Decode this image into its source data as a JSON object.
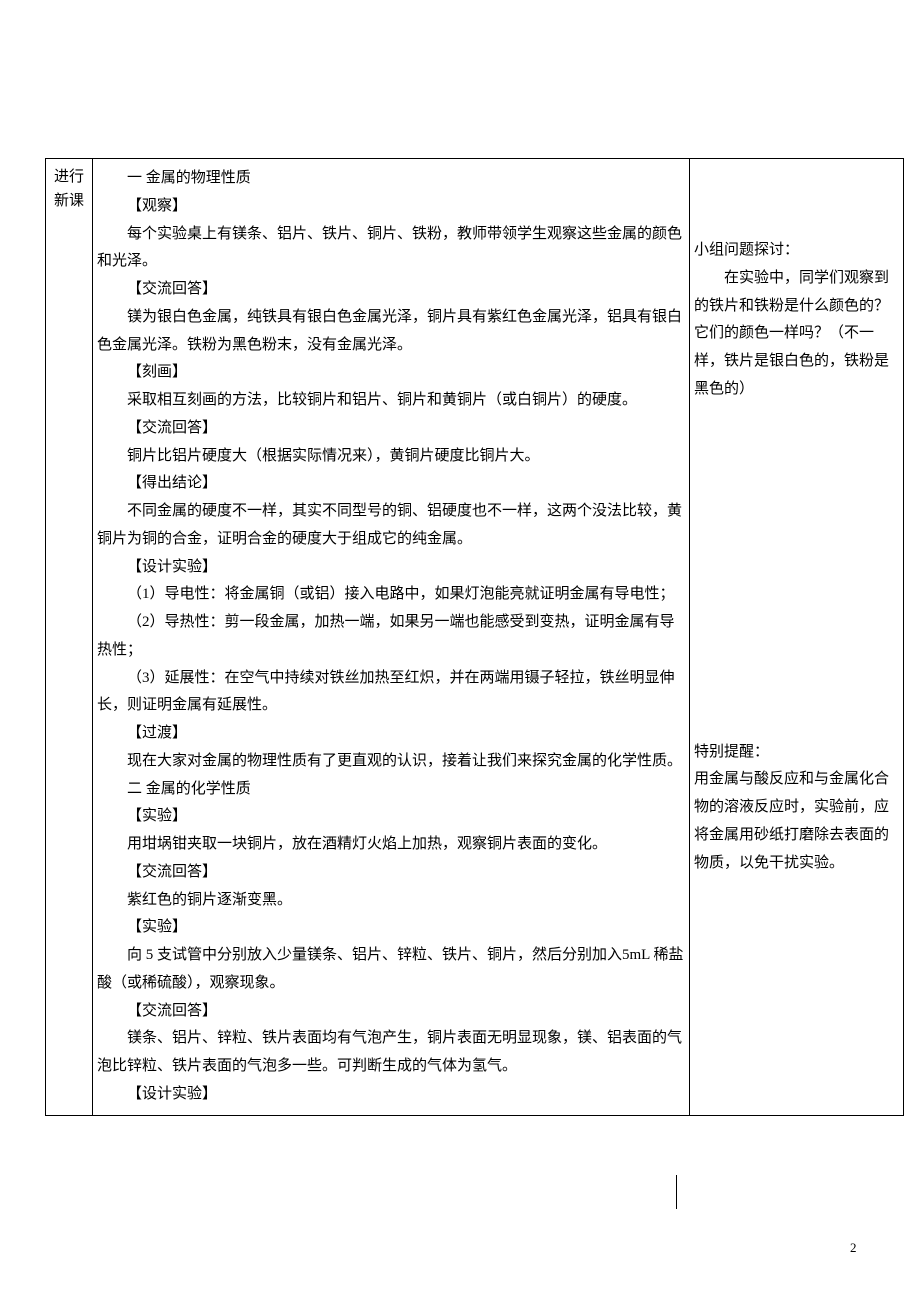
{
  "label": {
    "l1": "进行",
    "l2": "新课"
  },
  "body": {
    "h1": "一 金属的物理性质",
    "t01": "【观察】",
    "p01": "每个实验桌上有镁条、铝片、铁片、铜片、铁粉，教师带领学生观察这些金属的颜色和光泽。",
    "t02": "【交流回答】",
    "p02": "镁为银白色金属，纯铁具有银白色金属光泽，铜片具有紫红色金属光泽，铝具有银白色金属光泽。铁粉为黑色粉末，没有金属光泽。",
    "t03": "【刻画】",
    "p03": "采取相互刻画的方法，比较铜片和铝片、铜片和黄铜片（或白铜片）的硬度。",
    "t04": "【交流回答】",
    "p04": "铜片比铝片硬度大（根据实际情况来），黄铜片硬度比铜片大。",
    "t05": "【得出结论】",
    "p05": "不同金属的硬度不一样，其实不同型号的铜、铝硬度也不一样，这两个没法比较，黄铜片为铜的合金，证明合金的硬度大于组成它的纯金属。",
    "t06": "【设计实验】",
    "p06": "（1）导电性：将金属铜（或铝）接入电路中，如果灯泡能亮就证明金属有导电性；",
    "p07": "（2）导热性：剪一段金属，加热一端，如果另一端也能感受到变热，证明金属有导热性；",
    "p08": "（3）延展性：在空气中持续对铁丝加热至红炽，并在两端用镊子轻拉，铁丝明显伸长，则证明金属有延展性。",
    "t07": "【过渡】",
    "p09": "现在大家对金属的物理性质有了更直观的认识，接着让我们来探究金属的化学性质。",
    "h2": "二 金属的化学性质",
    "t08": "【实验】",
    "p10": "用坩埚钳夹取一块铜片，放在酒精灯火焰上加热，观察铜片表面的变化。",
    "t09": "【交流回答】",
    "p11": "紫红色的铜片逐渐变黑。",
    "t10": "【实验】",
    "p12": "向 5 支试管中分别放入少量镁条、铝片、锌粒、铁片、铜片，然后分别加入5mL 稀盐酸（或稀硫酸），观察现象。",
    "t11": "【交流回答】",
    "p13": "镁条、铝片、锌粒、铁片表面均有气泡产生，铜片表面无明显现象，镁、铝表面的气泡比锌粒、铁片表面的气泡多一些。可判断生成的气体为氢气。",
    "t12": "【设计实验】"
  },
  "notes": {
    "n1a": "小组问题探讨：",
    "n1b": "在实验中，同学们观察到的铁片和铁粉是什么颜色的？它们的颜色一样吗？（不一样，铁片是银白色的，铁粉是黑色的）",
    "n2a": "特别提醒：",
    "n2b": "用金属与酸反应和与金属化合物的溶液反应时，实验前，应将金属用砂纸打磨除去表面的物质，以免干扰实验。"
  },
  "pageNum": "2"
}
